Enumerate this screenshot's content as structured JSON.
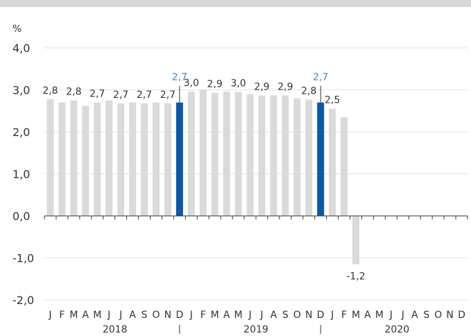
{
  "chart_data": {
    "type": "bar",
    "unit_label": "%",
    "ylim": [
      -2.0,
      4.0
    ],
    "yticks": [
      "4,0",
      "3,0",
      "2,0",
      "1,0",
      "0,0",
      "-1,0",
      "-2,0"
    ],
    "ytick_values": [
      4,
      3,
      2,
      1,
      0,
      -1,
      -2
    ],
    "grid": true,
    "month_labels": [
      "J",
      "F",
      "M",
      "A",
      "M",
      "J",
      "J",
      "A",
      "S",
      "O",
      "N",
      "D",
      "J",
      "F",
      "M",
      "A",
      "M",
      "J",
      "J",
      "A",
      "S",
      "O",
      "N",
      "D",
      "J",
      "F",
      "M",
      "A",
      "M",
      "J",
      "J",
      "A",
      "S",
      "O",
      "N",
      "D"
    ],
    "years": [
      "2018",
      "2019",
      "2020"
    ],
    "values": [
      2.78,
      2.7,
      2.75,
      2.62,
      2.7,
      2.75,
      2.68,
      2.7,
      2.68,
      2.7,
      2.68,
      2.7,
      2.96,
      3.0,
      2.93,
      2.96,
      2.95,
      2.9,
      2.87,
      2.87,
      2.87,
      2.8,
      2.77,
      2.7,
      2.55,
      2.35,
      -1.15,
      null,
      null,
      null,
      null,
      null,
      null,
      null,
      null,
      null
    ],
    "highlight": [
      11,
      23
    ],
    "colors": {
      "bar": "#dadada",
      "highlight": "#0a58a8",
      "highlight_label": "#4a86c5",
      "grid": "#e3e3e3",
      "axis": "#333333",
      "topbar": "#d6d6d6"
    },
    "data_labels": [
      {
        "index": 0,
        "text": "2,8"
      },
      {
        "index": 2,
        "text": "2,8"
      },
      {
        "index": 4,
        "text": "2,7"
      },
      {
        "index": 6,
        "text": "2,7"
      },
      {
        "index": 8,
        "text": "2,7"
      },
      {
        "index": 10,
        "text": "2,7"
      },
      {
        "index": 11,
        "text": "2,7",
        "highlight": true
      },
      {
        "index": 12,
        "text": "3,0"
      },
      {
        "index": 14,
        "text": "2,9"
      },
      {
        "index": 16,
        "text": "3,0"
      },
      {
        "index": 18,
        "text": "2,9"
      },
      {
        "index": 20,
        "text": "2,9"
      },
      {
        "index": 22,
        "text": "2,8"
      },
      {
        "index": 23,
        "text": "2,7",
        "highlight": true
      },
      {
        "index": 24,
        "text": "2,5"
      },
      {
        "index": 26,
        "text": "-1,2"
      }
    ]
  }
}
